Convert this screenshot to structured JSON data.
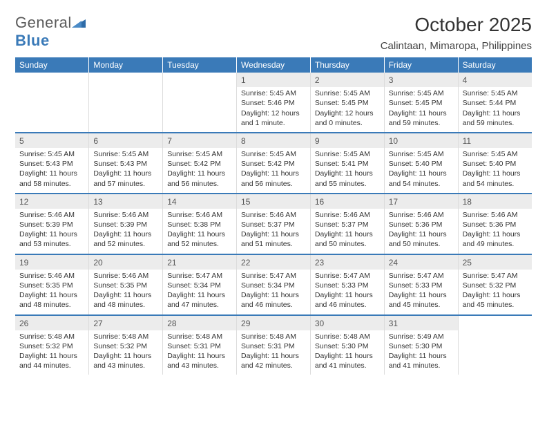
{
  "logo": {
    "text_a": "General",
    "text_b": "Blue"
  },
  "title": "October 2025",
  "location": "Calintaan, Mimaropa, Philippines",
  "colors": {
    "header_bg": "#3a7ab8",
    "daynum_bg": "#ececec",
    "rule": "#3a7ab8",
    "text": "#333333"
  },
  "weekdays": [
    "Sunday",
    "Monday",
    "Tuesday",
    "Wednesday",
    "Thursday",
    "Friday",
    "Saturday"
  ],
  "weeks": [
    [
      null,
      null,
      null,
      {
        "n": "1",
        "sr": "Sunrise: 5:45 AM",
        "ss": "Sunset: 5:46 PM",
        "dl": "Daylight: 12 hours and 1 minute."
      },
      {
        "n": "2",
        "sr": "Sunrise: 5:45 AM",
        "ss": "Sunset: 5:45 PM",
        "dl": "Daylight: 12 hours and 0 minutes."
      },
      {
        "n": "3",
        "sr": "Sunrise: 5:45 AM",
        "ss": "Sunset: 5:45 PM",
        "dl": "Daylight: 11 hours and 59 minutes."
      },
      {
        "n": "4",
        "sr": "Sunrise: 5:45 AM",
        "ss": "Sunset: 5:44 PM",
        "dl": "Daylight: 11 hours and 59 minutes."
      }
    ],
    [
      {
        "n": "5",
        "sr": "Sunrise: 5:45 AM",
        "ss": "Sunset: 5:43 PM",
        "dl": "Daylight: 11 hours and 58 minutes."
      },
      {
        "n": "6",
        "sr": "Sunrise: 5:45 AM",
        "ss": "Sunset: 5:43 PM",
        "dl": "Daylight: 11 hours and 57 minutes."
      },
      {
        "n": "7",
        "sr": "Sunrise: 5:45 AM",
        "ss": "Sunset: 5:42 PM",
        "dl": "Daylight: 11 hours and 56 minutes."
      },
      {
        "n": "8",
        "sr": "Sunrise: 5:45 AM",
        "ss": "Sunset: 5:42 PM",
        "dl": "Daylight: 11 hours and 56 minutes."
      },
      {
        "n": "9",
        "sr": "Sunrise: 5:45 AM",
        "ss": "Sunset: 5:41 PM",
        "dl": "Daylight: 11 hours and 55 minutes."
      },
      {
        "n": "10",
        "sr": "Sunrise: 5:45 AM",
        "ss": "Sunset: 5:40 PM",
        "dl": "Daylight: 11 hours and 54 minutes."
      },
      {
        "n": "11",
        "sr": "Sunrise: 5:45 AM",
        "ss": "Sunset: 5:40 PM",
        "dl": "Daylight: 11 hours and 54 minutes."
      }
    ],
    [
      {
        "n": "12",
        "sr": "Sunrise: 5:46 AM",
        "ss": "Sunset: 5:39 PM",
        "dl": "Daylight: 11 hours and 53 minutes."
      },
      {
        "n": "13",
        "sr": "Sunrise: 5:46 AM",
        "ss": "Sunset: 5:39 PM",
        "dl": "Daylight: 11 hours and 52 minutes."
      },
      {
        "n": "14",
        "sr": "Sunrise: 5:46 AM",
        "ss": "Sunset: 5:38 PM",
        "dl": "Daylight: 11 hours and 52 minutes."
      },
      {
        "n": "15",
        "sr": "Sunrise: 5:46 AM",
        "ss": "Sunset: 5:37 PM",
        "dl": "Daylight: 11 hours and 51 minutes."
      },
      {
        "n": "16",
        "sr": "Sunrise: 5:46 AM",
        "ss": "Sunset: 5:37 PM",
        "dl": "Daylight: 11 hours and 50 minutes."
      },
      {
        "n": "17",
        "sr": "Sunrise: 5:46 AM",
        "ss": "Sunset: 5:36 PM",
        "dl": "Daylight: 11 hours and 50 minutes."
      },
      {
        "n": "18",
        "sr": "Sunrise: 5:46 AM",
        "ss": "Sunset: 5:36 PM",
        "dl": "Daylight: 11 hours and 49 minutes."
      }
    ],
    [
      {
        "n": "19",
        "sr": "Sunrise: 5:46 AM",
        "ss": "Sunset: 5:35 PM",
        "dl": "Daylight: 11 hours and 48 minutes."
      },
      {
        "n": "20",
        "sr": "Sunrise: 5:46 AM",
        "ss": "Sunset: 5:35 PM",
        "dl": "Daylight: 11 hours and 48 minutes."
      },
      {
        "n": "21",
        "sr": "Sunrise: 5:47 AM",
        "ss": "Sunset: 5:34 PM",
        "dl": "Daylight: 11 hours and 47 minutes."
      },
      {
        "n": "22",
        "sr": "Sunrise: 5:47 AM",
        "ss": "Sunset: 5:34 PM",
        "dl": "Daylight: 11 hours and 46 minutes."
      },
      {
        "n": "23",
        "sr": "Sunrise: 5:47 AM",
        "ss": "Sunset: 5:33 PM",
        "dl": "Daylight: 11 hours and 46 minutes."
      },
      {
        "n": "24",
        "sr": "Sunrise: 5:47 AM",
        "ss": "Sunset: 5:33 PM",
        "dl": "Daylight: 11 hours and 45 minutes."
      },
      {
        "n": "25",
        "sr": "Sunrise: 5:47 AM",
        "ss": "Sunset: 5:32 PM",
        "dl": "Daylight: 11 hours and 45 minutes."
      }
    ],
    [
      {
        "n": "26",
        "sr": "Sunrise: 5:48 AM",
        "ss": "Sunset: 5:32 PM",
        "dl": "Daylight: 11 hours and 44 minutes."
      },
      {
        "n": "27",
        "sr": "Sunrise: 5:48 AM",
        "ss": "Sunset: 5:32 PM",
        "dl": "Daylight: 11 hours and 43 minutes."
      },
      {
        "n": "28",
        "sr": "Sunrise: 5:48 AM",
        "ss": "Sunset: 5:31 PM",
        "dl": "Daylight: 11 hours and 43 minutes."
      },
      {
        "n": "29",
        "sr": "Sunrise: 5:48 AM",
        "ss": "Sunset: 5:31 PM",
        "dl": "Daylight: 11 hours and 42 minutes."
      },
      {
        "n": "30",
        "sr": "Sunrise: 5:48 AM",
        "ss": "Sunset: 5:30 PM",
        "dl": "Daylight: 11 hours and 41 minutes."
      },
      {
        "n": "31",
        "sr": "Sunrise: 5:49 AM",
        "ss": "Sunset: 5:30 PM",
        "dl": "Daylight: 11 hours and 41 minutes."
      },
      null
    ]
  ]
}
